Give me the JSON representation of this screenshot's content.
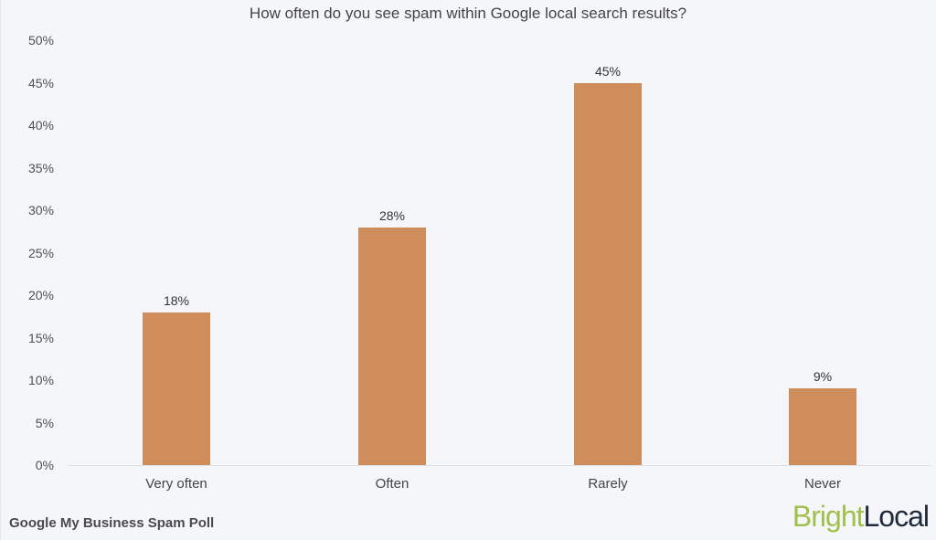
{
  "chart_data": {
    "type": "bar",
    "title": "How often do you see spam within Google local search results?",
    "categories": [
      "Very often",
      "Often",
      "Rarely",
      "Never"
    ],
    "values": [
      18,
      28,
      45,
      9
    ],
    "value_labels": [
      "18%",
      "28%",
      "45%",
      "9%"
    ],
    "xlabel": "",
    "ylabel": "",
    "ylim": [
      0,
      50
    ],
    "yticks": [
      "0%",
      "5%",
      "10%",
      "15%",
      "20%",
      "25%",
      "30%",
      "35%",
      "40%",
      "45%",
      "50%"
    ],
    "grid": false,
    "legend": null,
    "bar_color": "#d08d5c"
  },
  "footer": {
    "caption": "Google My Business Spam Poll",
    "logo_part1": "Bright",
    "logo_part2": "Local"
  }
}
